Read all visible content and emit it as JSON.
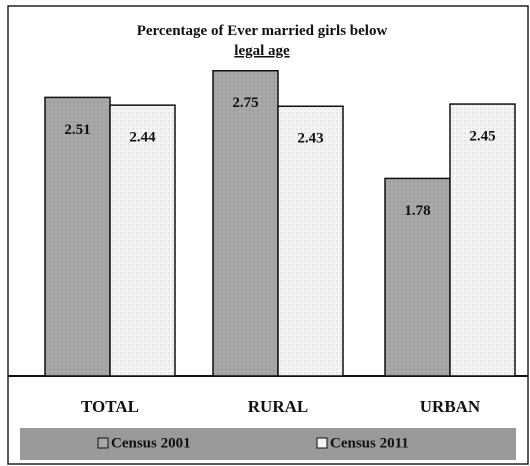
{
  "chart_data": {
    "type": "bar",
    "title": "Percentage of Ever married girls below legal age",
    "categories": [
      "TOTAL",
      "RURAL",
      "URBAN"
    ],
    "series": [
      {
        "name": "Census 2001",
        "color": "#a8a8a8",
        "values": [
          2.51,
          2.75,
          1.78
        ]
      },
      {
        "name": "Census 2011",
        "color": "#f4f4f4",
        "values": [
          2.44,
          2.43,
          2.45
        ]
      }
    ],
    "legend": "bottom"
  }
}
